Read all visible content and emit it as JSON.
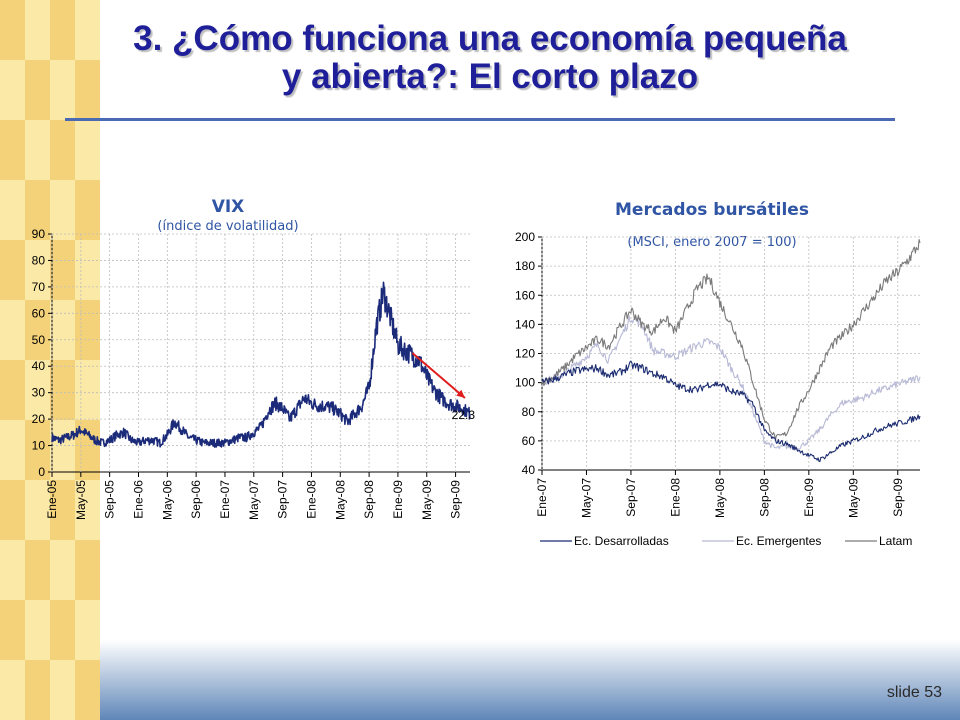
{
  "slide": {
    "title_line1": "3. ¿Cómo funciona una economía pequeña",
    "title_line2": "y abierta?: El corto plazo",
    "number": "slide 53"
  },
  "colors": {
    "title": "#1f1f9a",
    "rule": "#4a6bb3",
    "chart_title": "#2f55a4",
    "band_light": "#fbe9a8",
    "band_dark": "#f4d27a",
    "footer": "#5f86b8",
    "vix_line": "#1b2b7a",
    "arrow": "#e01e1e",
    "desarrolladas": "#1b2b70",
    "emergentes": "#b8bad6",
    "latam": "#7a7a7a"
  },
  "chart_data": [
    {
      "type": "line",
      "title": "VIX",
      "subtitle": "(índice de volatilidad)",
      "xlabel": "",
      "ylabel": "",
      "ylim": [
        0,
        90
      ],
      "yticks": [
        0,
        10,
        20,
        30,
        40,
        50,
        60,
        70,
        80,
        90
      ],
      "x_ticks": [
        "Ene-05",
        "May-05",
        "Sep-05",
        "Ene-06",
        "May-06",
        "Sep-06",
        "Ene-07",
        "May-07",
        "Sep-07",
        "Ene-08",
        "May-08",
        "Sep-08",
        "Ene-09",
        "May-09",
        "Sep-09"
      ],
      "x_range_months": [
        0,
        58
      ],
      "end_label": "22.3",
      "series": [
        {
          "name": "VIX",
          "x": [
            0,
            1,
            2,
            3,
            4,
            5,
            6,
            7,
            8,
            9,
            10,
            11,
            12,
            13,
            14,
            15,
            16,
            17,
            18,
            19,
            20,
            21,
            22,
            23,
            24,
            25,
            26,
            27,
            28,
            29,
            30,
            31,
            32,
            33,
            34,
            35,
            36,
            37,
            38,
            39,
            40,
            41,
            42,
            43,
            44,
            45,
            46,
            47,
            48,
            49,
            50,
            51,
            52,
            53,
            54,
            55,
            56,
            57,
            58
          ],
          "values": [
            13,
            12,
            13,
            14,
            16,
            14,
            12,
            11,
            12,
            14,
            15,
            12,
            11,
            12,
            12,
            11,
            14,
            19,
            16,
            13,
            12,
            11,
            11,
            11,
            11,
            12,
            13,
            13,
            15,
            17,
            23,
            26,
            24,
            20,
            24,
            28,
            26,
            25,
            25,
            24,
            22,
            19,
            22,
            25,
            32,
            55,
            68,
            58,
            48,
            46,
            44,
            42,
            36,
            31,
            28,
            26,
            25,
            24,
            22
          ]
        }
      ],
      "annotation": "arrow from Mar-09 down to end value"
    },
    {
      "type": "line",
      "title": "Mercados bursátiles",
      "subtitle": "(MSCI, enero 2007 = 100)",
      "xlabel": "",
      "ylabel": "",
      "ylim": [
        40,
        200
      ],
      "yticks": [
        40,
        60,
        80,
        100,
        120,
        140,
        160,
        180,
        200
      ],
      "x_ticks": [
        "Ene-07",
        "May-07",
        "Sep-07",
        "Ene-08",
        "May-08",
        "Sep-08",
        "Ene-09",
        "May-09",
        "Sep-09"
      ],
      "x_range_months": [
        0,
        34
      ],
      "legend": [
        "Ec. Desarrolladas",
        "Ec. Emergentes",
        "Latam"
      ],
      "legend_position": "bottom",
      "series": [
        {
          "name": "Ec. Desarrolladas",
          "x": [
            0,
            1,
            2,
            3,
            4,
            5,
            6,
            7,
            8,
            9,
            10,
            11,
            12,
            13,
            14,
            15,
            16,
            17,
            18,
            19,
            20,
            21,
            22,
            23,
            24,
            25,
            26,
            27,
            28,
            29,
            30,
            31,
            32,
            33,
            34
          ],
          "values": [
            100,
            102,
            105,
            108,
            109,
            110,
            105,
            107,
            112,
            110,
            106,
            104,
            98,
            96,
            95,
            99,
            99,
            94,
            92,
            85,
            67,
            60,
            58,
            54,
            50,
            47,
            52,
            57,
            60,
            63,
            67,
            70,
            72,
            74,
            77
          ]
        },
        {
          "name": "Ec. Emergentes",
          "x": [
            0,
            1,
            2,
            3,
            4,
            5,
            6,
            7,
            8,
            9,
            10,
            11,
            12,
            13,
            14,
            15,
            16,
            17,
            18,
            19,
            20,
            21,
            22,
            23,
            24,
            25,
            26,
            27,
            28,
            29,
            30,
            31,
            32,
            33,
            34
          ],
          "values": [
            100,
            103,
            106,
            112,
            118,
            126,
            115,
            130,
            145,
            140,
            122,
            120,
            118,
            122,
            126,
            128,
            124,
            110,
            98,
            80,
            60,
            55,
            56,
            55,
            60,
            68,
            78,
            86,
            88,
            90,
            94,
            96,
            99,
            101,
            104
          ]
        },
        {
          "name": "Latam",
          "x": [
            0,
            1,
            2,
            3,
            4,
            5,
            6,
            7,
            8,
            9,
            10,
            11,
            12,
            13,
            14,
            15,
            16,
            17,
            18,
            19,
            20,
            21,
            22,
            23,
            24,
            25,
            26,
            27,
            28,
            29,
            30,
            31,
            32,
            33,
            34
          ],
          "values": [
            100,
            104,
            110,
            118,
            124,
            130,
            125,
            138,
            150,
            140,
            135,
            145,
            135,
            150,
            165,
            172,
            155,
            140,
            125,
            100,
            75,
            62,
            65,
            82,
            95,
            110,
            125,
            132,
            140,
            150,
            160,
            170,
            176,
            185,
            196
          ]
        }
      ]
    }
  ]
}
